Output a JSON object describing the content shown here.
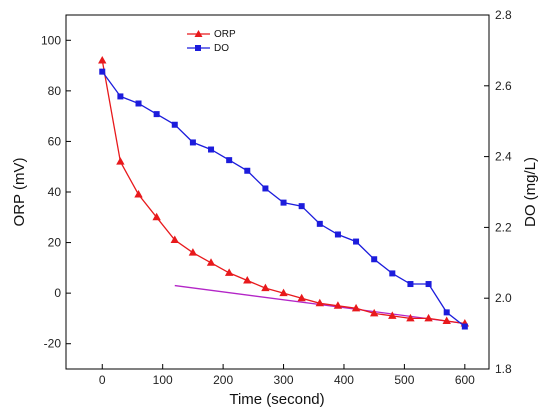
{
  "chart_data": {
    "type": "line",
    "xlabel": "Time (second)",
    "ylabel_left": "ORP (mV)",
    "ylabel_right": "DO (mg/L)",
    "xlim": [
      -60,
      640
    ],
    "ylim_left": [
      -30,
      110
    ],
    "ylim_right": [
      1.8,
      2.8
    ],
    "x_ticks": [
      0,
      100,
      200,
      300,
      400,
      500,
      600
    ],
    "y_left_ticks": [
      -20,
      0,
      20,
      40,
      60,
      80,
      100
    ],
    "y_right_ticks": [
      1.8,
      2.0,
      2.2,
      2.4,
      2.6,
      2.8
    ],
    "x_tick_labels": [
      "0",
      "100",
      "200",
      "300",
      "400",
      "500",
      "600"
    ],
    "y_left_tick_labels": [
      "-20",
      "0",
      "20",
      "40",
      "60",
      "80",
      "100"
    ],
    "y_right_tick_labels": [
      "1.8",
      "2.0",
      "2.2",
      "2.4",
      "2.6",
      "2.8"
    ],
    "grid": false,
    "legend_position": "top-center",
    "series": [
      {
        "name": "ORP",
        "axis": "left",
        "color": "#e8191c",
        "marker": "triangle",
        "x": [
          0,
          30,
          60,
          90,
          120,
          150,
          180,
          210,
          240,
          270,
          300,
          330,
          360,
          390,
          420,
          450,
          480,
          510,
          540,
          570,
          600
        ],
        "y": [
          92,
          52,
          39,
          30,
          21,
          16,
          12,
          8,
          5,
          2,
          0,
          -2,
          -4,
          -5,
          -6,
          -8,
          -9,
          -10,
          -10,
          -11,
          -12
        ]
      },
      {
        "name": "DO",
        "axis": "right",
        "color": "#1c1cdc",
        "marker": "square",
        "x": [
          0,
          30,
          60,
          90,
          120,
          150,
          180,
          210,
          240,
          270,
          300,
          330,
          360,
          390,
          420,
          450,
          480,
          510,
          540,
          570,
          600
        ],
        "y": [
          2.64,
          2.57,
          2.55,
          2.52,
          2.49,
          2.44,
          2.42,
          2.39,
          2.36,
          2.31,
          2.27,
          2.26,
          2.21,
          2.18,
          2.16,
          2.11,
          2.07,
          2.04,
          2.04,
          1.96,
          1.92
        ]
      }
    ],
    "trend_line": {
      "axis": "left",
      "color": "#b325c7",
      "x": [
        120,
        600
      ],
      "y": [
        3,
        -12
      ]
    }
  }
}
